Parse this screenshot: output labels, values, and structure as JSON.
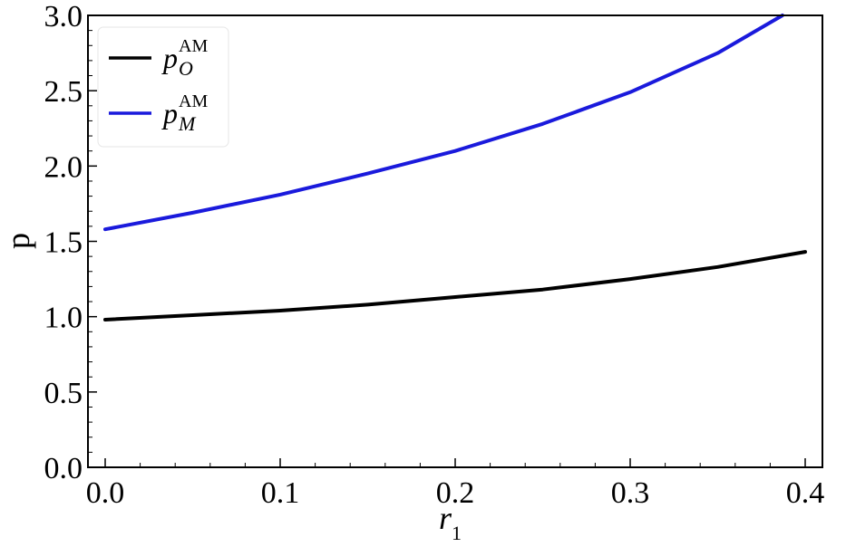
{
  "chart_data": {
    "type": "line",
    "xlabel": {
      "main": "r",
      "sub": "1"
    },
    "ylabel": "p",
    "xlim": [
      0,
      0.4
    ],
    "ylim": [
      0,
      3.0
    ],
    "x_ticks": [
      "0.0",
      "0.1",
      "0.2",
      "0.3",
      "0.4"
    ],
    "x_tick_values": [
      0,
      0.1,
      0.2,
      0.3,
      0.4
    ],
    "y_ticks": [
      "0.0",
      "0.5",
      "1.0",
      "1.5",
      "2.0",
      "2.5",
      "3.0"
    ],
    "y_tick_values": [
      0,
      0.5,
      1.0,
      1.5,
      2.0,
      2.5,
      3.0
    ],
    "grid": false,
    "legend_position": "top-left",
    "series": [
      {
        "name": "p_O^AM",
        "label": {
          "main": "p",
          "sub": "O",
          "sup": "AM"
        },
        "color": "#000000",
        "x": [
          0,
          0.05,
          0.1,
          0.15,
          0.2,
          0.25,
          0.3,
          0.35,
          0.4
        ],
        "y": [
          0.98,
          1.01,
          1.04,
          1.08,
          1.13,
          1.18,
          1.25,
          1.33,
          1.43
        ]
      },
      {
        "name": "p_M^AM",
        "label": {
          "main": "p",
          "sub": "M",
          "sup": "AM"
        },
        "color": "#1a1adc",
        "x": [
          0,
          0.05,
          0.1,
          0.15,
          0.2,
          0.25,
          0.3,
          0.35,
          0.387
        ],
        "y": [
          1.58,
          1.69,
          1.81,
          1.95,
          2.1,
          2.28,
          2.49,
          2.75,
          3.0
        ]
      }
    ]
  }
}
